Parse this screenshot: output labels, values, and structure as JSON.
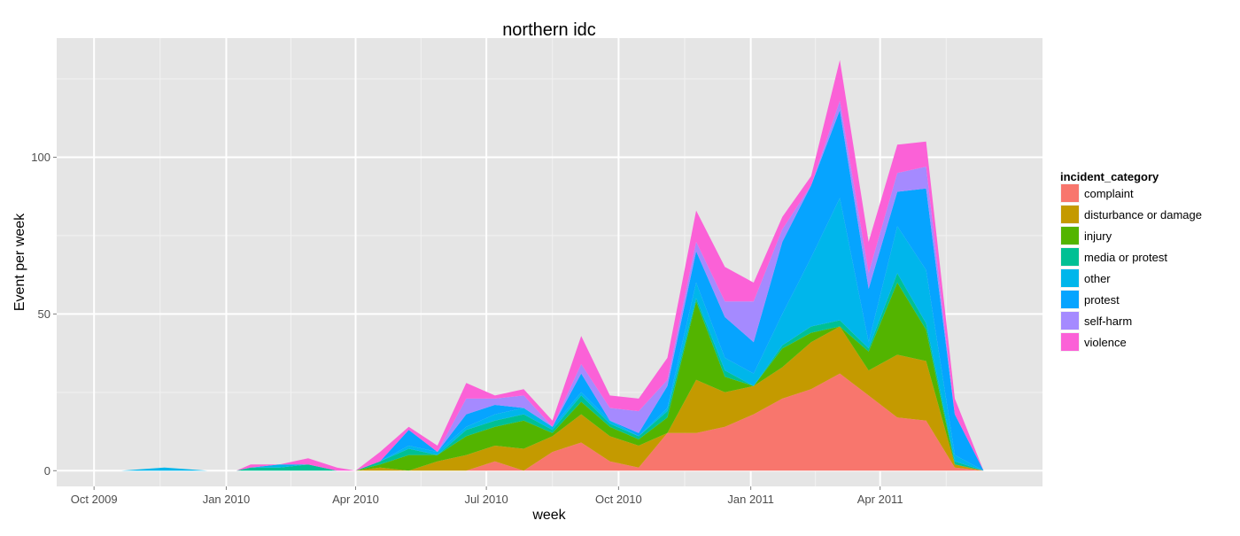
{
  "chart_data": {
    "type": "area",
    "stacked": true,
    "title": "northern idc",
    "xlabel": "week",
    "ylabel": "Event per week",
    "ylim": [
      -5,
      138
    ],
    "yticks": [
      0,
      50,
      100
    ],
    "xlim": [
      "2009-09-05",
      "2011-07-23"
    ],
    "xticks": [
      {
        "date": "2009-10-01",
        "label": "Oct 2009"
      },
      {
        "date": "2010-01-01",
        "label": "Jan 2010"
      },
      {
        "date": "2010-04-01",
        "label": "Apr 2010"
      },
      {
        "date": "2010-07-01",
        "label": "Jul 2010"
      },
      {
        "date": "2010-10-01",
        "label": "Oct 2010"
      },
      {
        "date": "2011-01-01",
        "label": "Jan 2011"
      },
      {
        "date": "2011-04-01",
        "label": "Apr 2011"
      }
    ],
    "grid": true,
    "legend_position": "right",
    "legend_title": "incident_category",
    "x": [
      "2009-10-20",
      "2009-11-19",
      "2009-12-19",
      "2010-01-08",
      "2010-01-18",
      "2010-02-07",
      "2010-02-27",
      "2010-03-19",
      "2010-04-01",
      "2010-04-18",
      "2010-05-08",
      "2010-05-28",
      "2010-06-17",
      "2010-07-07",
      "2010-07-27",
      "2010-08-16",
      "2010-09-05",
      "2010-09-25",
      "2010-10-15",
      "2010-11-04",
      "2010-11-24",
      "2010-12-14",
      "2011-01-03",
      "2011-01-23",
      "2011-02-12",
      "2011-03-04",
      "2011-03-24",
      "2011-04-13",
      "2011-05-03",
      "2011-05-23",
      "2011-06-12"
    ],
    "series": [
      {
        "name": "complaint",
        "color": "#F8766D",
        "values": [
          0,
          0,
          0,
          0,
          0,
          0,
          0,
          0,
          0,
          0,
          0,
          0,
          0,
          3,
          0,
          6,
          9,
          3,
          1,
          12,
          12,
          14,
          18,
          23,
          26,
          31,
          24,
          17,
          16,
          1,
          0
        ]
      },
      {
        "name": "disturbance or damage",
        "color": "#C49A00",
        "values": [
          0,
          0,
          0,
          0,
          0,
          0,
          0,
          0,
          0,
          1,
          0,
          3,
          5,
          5,
          7,
          5,
          9,
          8,
          7,
          0,
          17,
          11,
          9,
          10,
          15,
          15,
          8,
          20,
          19,
          1,
          0
        ]
      },
      {
        "name": "injury",
        "color": "#53B400",
        "values": [
          0,
          0,
          0,
          0,
          0,
          0,
          0,
          0,
          0,
          1,
          5,
          2,
          6,
          6,
          9,
          1,
          4,
          3,
          2,
          5,
          25,
          5,
          0,
          6,
          3,
          0,
          6,
          23,
          10,
          0,
          0
        ]
      },
      {
        "name": "media or protest",
        "color": "#00C094",
        "values": [
          0,
          0,
          0,
          0,
          1,
          1,
          2,
          0,
          0,
          1,
          2,
          0,
          2,
          2,
          2,
          1,
          2,
          1,
          1,
          2,
          1,
          2,
          0,
          1,
          2,
          2,
          1,
          3,
          2,
          1,
          0
        ]
      },
      {
        "name": "other",
        "color": "#00B6EB",
        "values": [
          0,
          1,
          0,
          0,
          0,
          1,
          0,
          0,
          0,
          0,
          1,
          1,
          1,
          2,
          2,
          1,
          1,
          1,
          0,
          1,
          5,
          4,
          4,
          10,
          22,
          39,
          2,
          15,
          17,
          2,
          0
        ]
      },
      {
        "name": "protest",
        "color": "#06A4FF",
        "values": [
          0,
          0,
          0,
          0,
          0,
          0,
          0,
          0,
          0,
          0,
          5,
          0,
          4,
          3,
          0,
          0,
          6,
          0,
          1,
          7,
          10,
          13,
          10,
          23,
          23,
          28,
          17,
          11,
          26,
          13,
          0
        ]
      },
      {
        "name": "self-harm",
        "color": "#A58AFF",
        "values": [
          0,
          0,
          0,
          0,
          0,
          0,
          0,
          0,
          0,
          0,
          0,
          0,
          5,
          2,
          4,
          0,
          3,
          4,
          7,
          2,
          3,
          5,
          13,
          4,
          0,
          3,
          5,
          6,
          7,
          0,
          0
        ]
      },
      {
        "name": "violence",
        "color": "#FB61D7",
        "values": [
          0,
          0,
          0,
          0,
          1,
          0,
          2,
          1,
          0,
          3,
          1,
          2,
          5,
          1,
          2,
          2,
          9,
          4,
          4,
          7,
          10,
          11,
          6,
          4,
          3,
          13,
          10,
          9,
          8,
          5,
          0
        ]
      }
    ]
  }
}
